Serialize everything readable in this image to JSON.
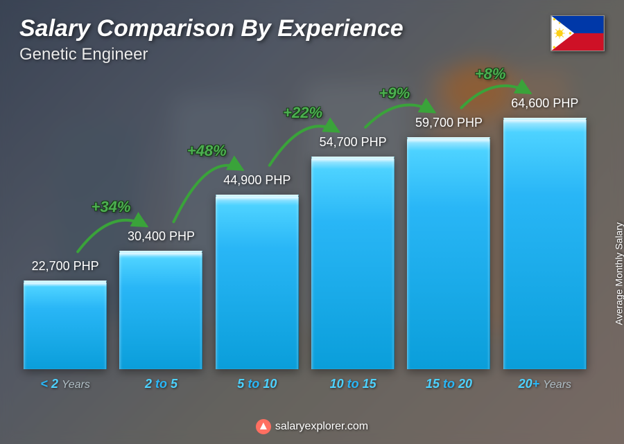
{
  "header": {
    "title": "Salary Comparison By Experience",
    "subtitle": "Genetic Engineer"
  },
  "flag": {
    "country": "Philippines",
    "colors": {
      "blue": "#0038a8",
      "red": "#ce1126",
      "white": "#ffffff",
      "yellow": "#fcd116"
    }
  },
  "yaxis_label": "Average Monthly Salary",
  "footer": {
    "site": "salaryexplorer.com"
  },
  "chart": {
    "type": "bar",
    "currency": "PHP",
    "max_value": 64600,
    "bar_color_top": "#4dd2ff",
    "bar_color_bottom": "#0a9eda",
    "bar_highlight": "#b3ecff",
    "bar_width_ratio": 0.82,
    "value_fontsize": 18,
    "value_color": "#ffffff",
    "xlabel_color": "#29b6f6",
    "xlabel_dim_color": "#b0bec5",
    "xlabel_fontsize": 18,
    "pct_color": "#4caf50",
    "pct_stroke": "#3aa33a",
    "pct_fontsize": 22,
    "background_overlay": "rgba(30,35,45,0.35)",
    "categories": [
      {
        "label_main": "< 2",
        "label_suffix": "Years",
        "value": 22700,
        "value_label": "22,700 PHP"
      },
      {
        "label_main": "2 to 5",
        "label_suffix": "",
        "value": 30400,
        "value_label": "30,400 PHP",
        "pct_increase": "+34%"
      },
      {
        "label_main": "5 to 10",
        "label_suffix": "",
        "value": 44900,
        "value_label": "44,900 PHP",
        "pct_increase": "+48%"
      },
      {
        "label_main": "10 to 15",
        "label_suffix": "",
        "value": 54700,
        "value_label": "54,700 PHP",
        "pct_increase": "+22%"
      },
      {
        "label_main": "15 to 20",
        "label_suffix": "",
        "value": 59700,
        "value_label": "59,700 PHP",
        "pct_increase": "+9%"
      },
      {
        "label_main": "20+",
        "label_suffix": "Years",
        "value": 64600,
        "value_label": "64,600 PHP",
        "pct_increase": "+8%"
      }
    ]
  }
}
